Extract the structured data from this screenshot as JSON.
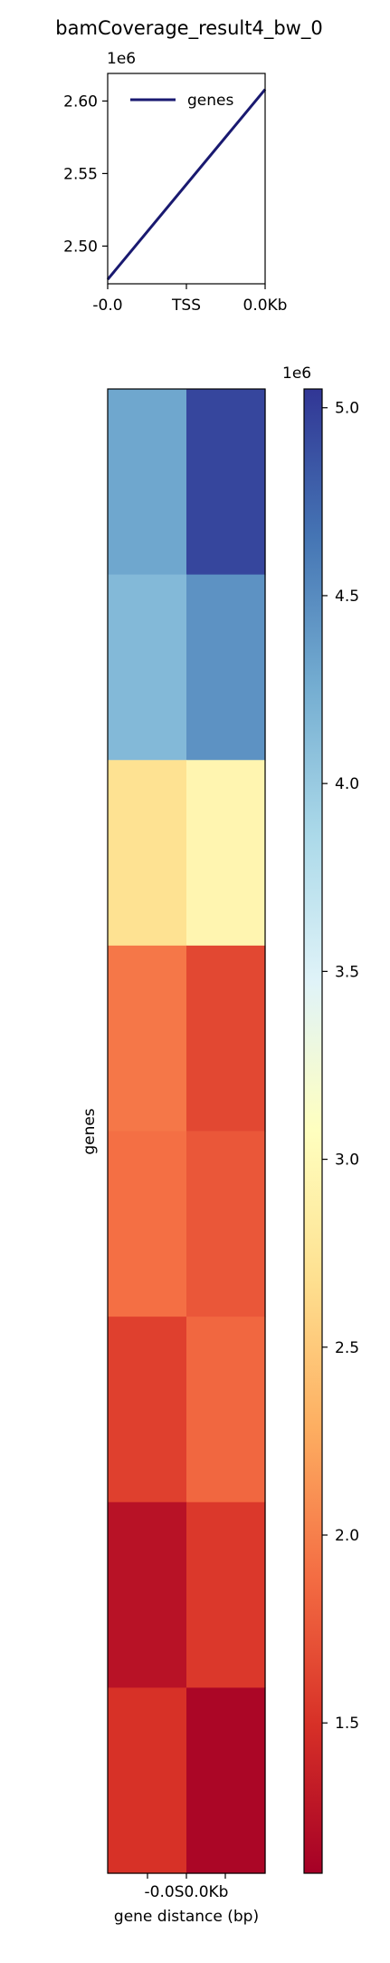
{
  "title": "bamCoverage_result4_bw_0",
  "chart_data": [
    {
      "type": "line",
      "name": "profile",
      "offset_label": "1e6",
      "x_ticks": [
        "-0.0",
        "TSS",
        "0.0Kb"
      ],
      "y_ticks": [
        2.5,
        2.55,
        2.6
      ],
      "y_tick_labels": [
        "2.50",
        "2.55",
        "2.60"
      ],
      "ylim": [
        2.474,
        2.619
      ],
      "legend_position": "top-left",
      "series": [
        {
          "name": "genes",
          "color": "#191970",
          "x": [
            0,
            1
          ],
          "y": [
            2.477,
            2.608
          ]
        }
      ]
    },
    {
      "type": "heatmap",
      "name": "heatmap",
      "ylabel": "genes",
      "xlabel": "gene distance (bp)",
      "x_ticks": [
        "-0.0",
        "TSS",
        "0.0Kb"
      ],
      "x_tick_overlap_text": "-0.0S0.0Kb",
      "columns": 2,
      "rows": 8,
      "values_1e6": [
        [
          4.3,
          4.95
        ],
        [
          4.15,
          4.45
        ],
        [
          2.7,
          2.95
        ],
        [
          1.95,
          1.65
        ],
        [
          1.9,
          1.75
        ],
        [
          1.6,
          1.85
        ],
        [
          1.25,
          1.55
        ],
        [
          1.5,
          1.15
        ]
      ],
      "colormap": "RdYlBu",
      "colorbar": {
        "offset_label": "1e6",
        "vmin": 1.1,
        "vmax": 5.05,
        "ticks": [
          1.5,
          2.0,
          2.5,
          3.0,
          3.5,
          4.0,
          4.5,
          5.0
        ],
        "tick_labels": [
          "1.5",
          "2.0",
          "2.5",
          "3.0",
          "3.5",
          "4.0",
          "4.5",
          "5.0"
        ]
      }
    }
  ]
}
